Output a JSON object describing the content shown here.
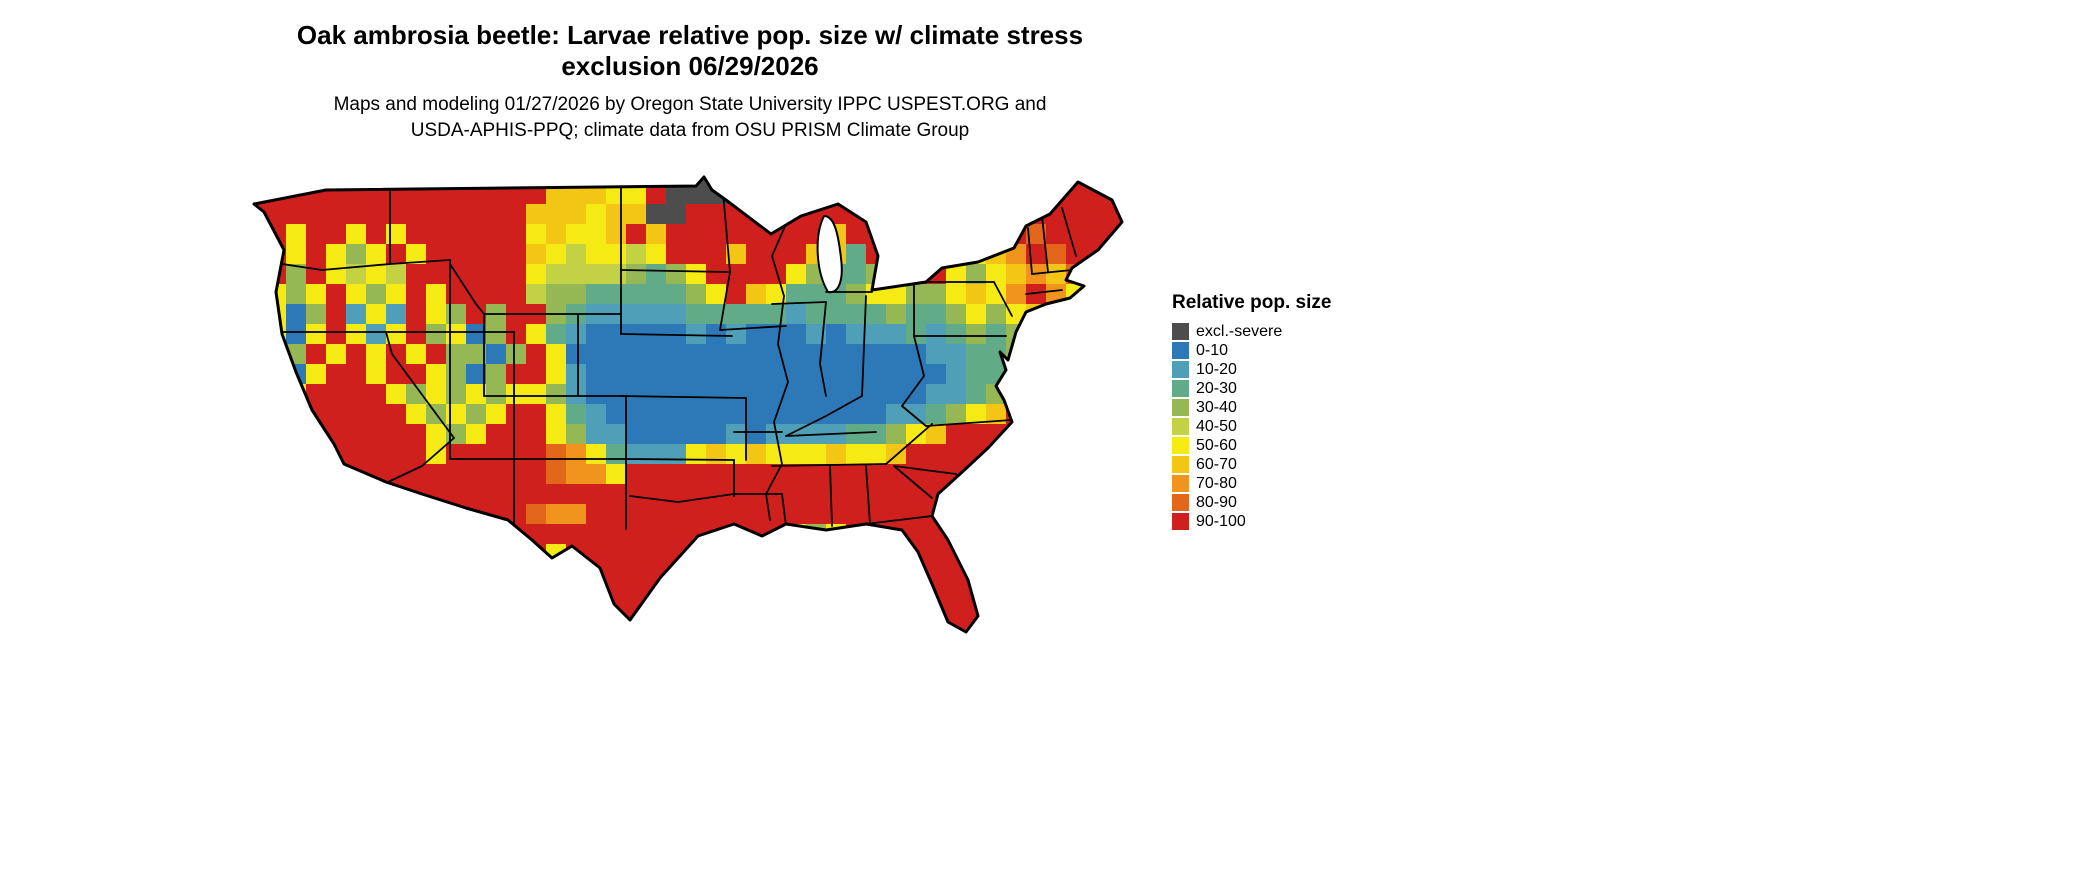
{
  "title": {
    "line1": "Oak ambrosia beetle: Larvae relative pop. size w/ climate stress",
    "line2": "exclusion 06/29/2026"
  },
  "subtitle": {
    "line1": "Maps and modeling 01/27/2026 by Oregon State University IPPC USPEST.ORG and",
    "line2": "USDA-APHIS-PPQ; climate data from OSU PRISM Climate Group"
  },
  "legend": {
    "title": "Relative pop. size",
    "items": [
      {
        "code": "X",
        "label": "excl.-severe",
        "color": "#4d4d4d"
      },
      {
        "code": "0",
        "label": "0-10",
        "color": "#2d79b8"
      },
      {
        "code": "1",
        "label": "10-20",
        "color": "#4f9fb8"
      },
      {
        "code": "2",
        "label": "20-30",
        "color": "#62ab88"
      },
      {
        "code": "3",
        "label": "30-40",
        "color": "#95b854"
      },
      {
        "code": "4",
        "label": "40-50",
        "color": "#c3d244"
      },
      {
        "code": "5",
        "label": "50-60",
        "color": "#f6ea15"
      },
      {
        "code": "6",
        "label": "60-70",
        "color": "#f3c515"
      },
      {
        "code": "7",
        "label": "70-80",
        "color": "#f0941d"
      },
      {
        "code": "8",
        "label": "80-90",
        "color": "#e2661b"
      },
      {
        "code": "9",
        "label": "90-100",
        "color": "#d0201e"
      }
    ]
  },
  "map": {
    "name": "continental-us-relative-pop-size-raster",
    "cell_size": 20,
    "grid_rle": [
      "22:9,6:X,18:9",
      "16:9,3:6,2:5,1:9,5:X,19:9",
      "15:9,3:6,1:5,2:6,2:X,23:9",
      "3:9,1:5,2:9,1:5,1:9,1:5,6:9,1:5,1:6,2:5,1:6,1:9,1:6,8:9,1:6,9:9,1:8,5:9",
      "3:9,1:5,1:9,1:5,1:3,1:5,1:9,1:5,5:9,1:6,1:5,1:4,2:5,1:4,1:5,3:9,1:6,3:9,2:6,1:2,4:9,1:6,1:5,1:6,1:7,1:9,1:8,4:9",
      "3:9,1:3,1:9,1:5,1:4,1:5,1:4,1:9,5:9,1:5,4:4,1:3,1:2,1:3,1:5,4:9,1:5,1:3,2:2,1:3,1:7,2:9,1:5,1:3,1:5,1:6,1:7,1:6,1:8,3:9",
      "2:9,1:5,1:3,1:5,1:9,1:5,1:3,1:5,1:9,1:5,4:9,1:4,2:3,5:2,1:3,1:5,1:9,1:6,1:5,3:2,1:3,2:5,2:3,1:5,1:6,1:5,1:7,1:9,1:7,1:5,1:6,2:9",
      "2:9,1:5,1:0,1:3,1:9,1:1,1:5,1:1,1:9,1:5,1:3,1:9,1:3,2:9,1:3,1:2,5:1,5:2,1:1,4:2,1:3,2:2,1:3,1:5,1:3,1:5,1:6,1:5,1:6,3:9",
      "1:9,2:5,1:0,1:5,1:9,1:5,1:1,1:5,1:9,1:3,1:5,1:0,1:3,1:9,1:5,1:2,1:1,5:0,1:1,1:0,1:1,3:0,1:1,1:0,3:1,1:2,1:1,1:2,1:3,1:2,1:3,1:5,1:3,1:5,3:9",
      "1:9,1:5,1:0,1:3,1:9,1:5,1:9,1:5,1:9,1:5,1:9,2:3,1:0,1:3,1:9,1:5,18:0,2:1,2:2,1:3,1:5,1:6,4:9",
      "2:9,1:5,1:0,1:5,2:9,1:5,2:9,1:5,1:3,1:0,1:3,2:9,1:5,1:1,18:0,1:1,2:2,1:3,1:5,1:6,4:9",
      "3:9,1:5,4:9,1:5,1:3,1:5,1:3,1:5,1:3,2:5,1:3,1:1,17:0,2:1,1:2,1:3,1:5,1:6,5:9",
      "9:9,1:5,1:3,1:5,1:3,1:5,2:9,1:5,1:2,1:1,14:0,2:1,1:2,1:3,1:5,1:6,7:9",
      "10:9,1:5,1:3,1:5,3:9,1:5,1:3,2:1,5:0,1:1,1:0,4:1,2:2,1:3,1:5,1:6,10:9",
      "10:9,1:5,5:9,1:8,1:7,1:5,1:2,3:1,1:5,1:6,1:5,1:6,3:5,1:6,2:5,1:6,12:9",
      "16:9,1:8,2:7,1:5,26:9",
      "46:9",
      "15:9,1:8,2:7,28:9",
      "28:9,1:5,1:3,1:5,15:9",
      "14:9,1:5,1:9,1:5,11:9,1:2,1:1,1:2,1:5,14:9",
      "14:9,1:5,1:1,1:5,12:9,2:1,1:2,14:9",
      "14:9,1:5,1:0,1:5,12:9,1:0,1:1,15:9",
      "15:9,1:5,13:9,2:0,15:9",
      "29:9,1:0,1:1,15:9",
      "46:9",
      "46:9"
    ]
  }
}
